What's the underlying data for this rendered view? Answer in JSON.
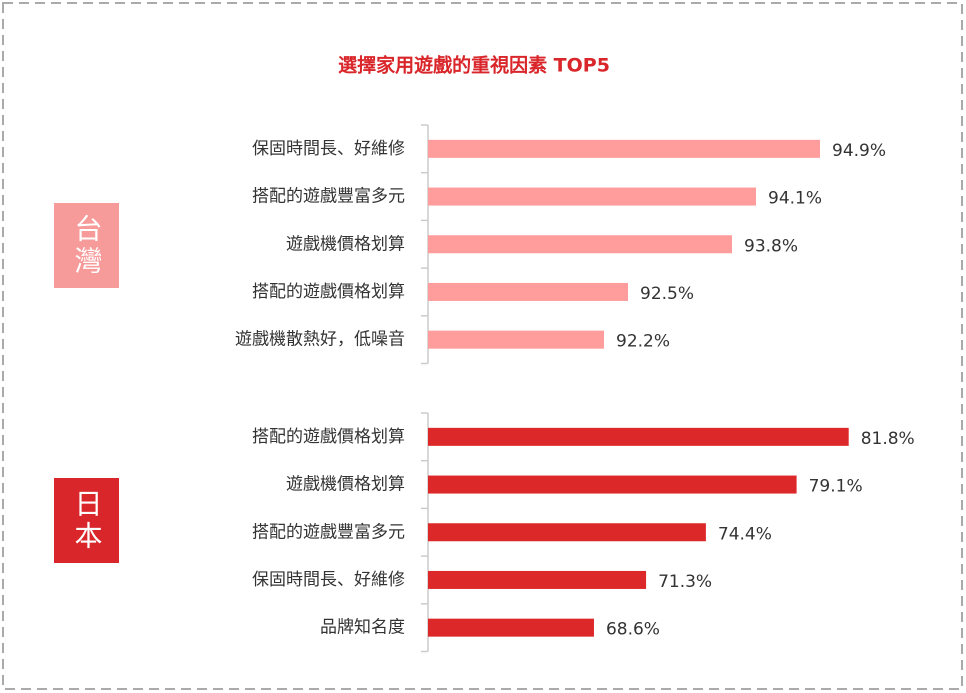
{
  "title": "選擇家用遊戲的重視因素 TOP5",
  "chart_data": [
    {
      "type": "bar",
      "orientation": "horizontal",
      "label": "台灣",
      "categories": [
        "保固時間長、好維修",
        "搭配的遊戲豐富多元",
        "遊戲機價格划算",
        "搭配的遊戲價格划算",
        "遊戲機散熱好，低噪音"
      ],
      "values": [
        94.9,
        94.1,
        93.8,
        92.5,
        92.2
      ],
      "value_labels": [
        "94.9%",
        "94.1%",
        "93.8%",
        "92.5%",
        "92.2%"
      ],
      "color": "#ff9c9c",
      "xlim": [
        90,
        95.5
      ]
    },
    {
      "type": "bar",
      "orientation": "horizontal",
      "label": "日本",
      "categories": [
        "搭配的遊戲價格划算",
        "遊戲機價格划算",
        "搭配的遊戲豐富多元",
        "保固時間長、好維修",
        "品牌知名度"
      ],
      "values": [
        81.8,
        79.1,
        74.4,
        71.3,
        68.6
      ],
      "value_labels": [
        "81.8%",
        "79.1%",
        "74.4%",
        "71.3%",
        "68.6%"
      ],
      "color": "#dc2828",
      "xlim": [
        60,
        82.8
      ]
    }
  ]
}
